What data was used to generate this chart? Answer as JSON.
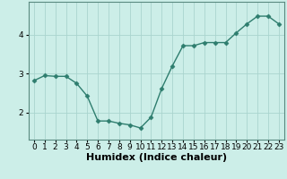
{
  "x": [
    0,
    1,
    2,
    3,
    4,
    5,
    6,
    7,
    8,
    9,
    10,
    11,
    12,
    13,
    14,
    15,
    16,
    17,
    18,
    19,
    20,
    21,
    22,
    23
  ],
  "y": [
    2.82,
    2.95,
    2.93,
    2.93,
    2.75,
    2.42,
    1.78,
    1.78,
    1.72,
    1.68,
    1.6,
    1.88,
    2.62,
    3.2,
    3.72,
    3.72,
    3.8,
    3.8,
    3.8,
    4.05,
    4.28,
    4.48,
    4.48,
    4.28
  ],
  "line_color": "#2e7d6e",
  "marker": "D",
  "markersize": 2.5,
  "bg_color": "#cceee8",
  "grid_color": "#aad4ce",
  "xlabel": "Humidex (Indice chaleur)",
  "xlabel_fontsize": 8,
  "yticks": [
    2,
    3,
    4
  ],
  "ylim": [
    1.3,
    4.85
  ],
  "xlim": [
    -0.5,
    23.5
  ],
  "xtick_labels": [
    "0",
    "1",
    "2",
    "3",
    "4",
    "5",
    "6",
    "7",
    "8",
    "9",
    "10",
    "11",
    "12",
    "13",
    "14",
    "15",
    "16",
    "17",
    "18",
    "19",
    "20",
    "21",
    "22",
    "23"
  ],
  "tick_fontsize": 6.5,
  "linewidth": 1.0,
  "spine_color": "#5a8a80"
}
